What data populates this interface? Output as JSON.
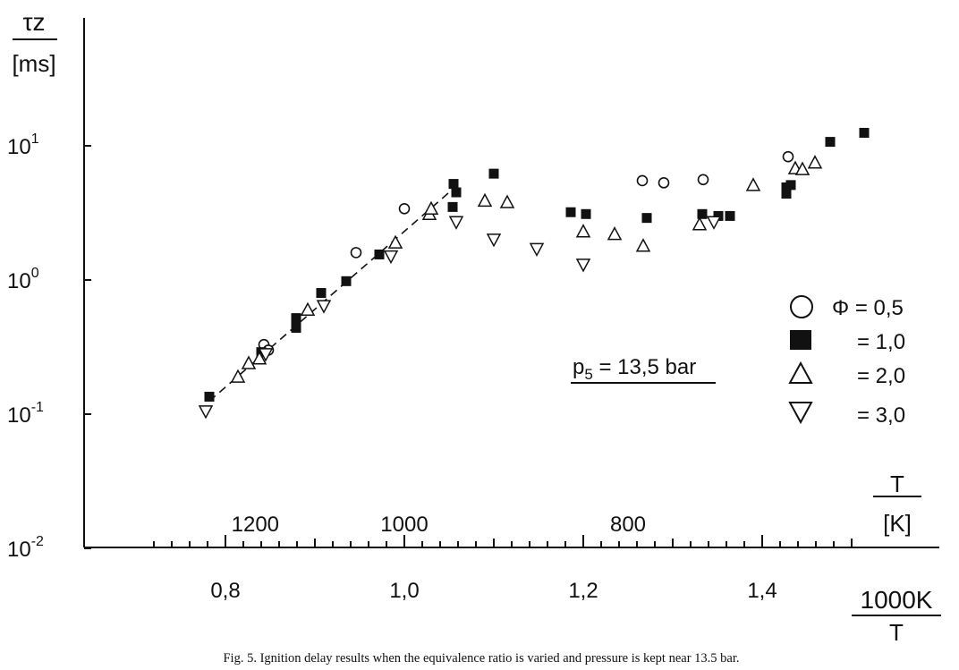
{
  "chart_data": {
    "type": "scatter",
    "title": "",
    "caption": "Fig. 5. Ignition delay results when the equivalence ratio is varied and pressure is kept near 13.5 bar.",
    "y_label_top": "τz",
    "y_label_unit": "[ms]",
    "x_label_numerator": "1000K",
    "x_label_denominator": "T",
    "top_axis_label_top": "T",
    "top_axis_label_unit": "[K]",
    "annotation": "p5 = 13,5 bar",
    "annotation_parts": {
      "p": "p",
      "sub": "5",
      "rest": " = 13,5 bar"
    },
    "y_scale": "log",
    "ylim": [
      0.01,
      20
    ],
    "xlim": [
      0.71,
      1.52
    ],
    "grid": false,
    "legend_position": "right",
    "legend_header": "Φ",
    "y_ticks": [
      {
        "value": 10,
        "base": "10",
        "exp": "1"
      },
      {
        "value": 1,
        "base": "10",
        "exp": "0"
      },
      {
        "value": 0.1,
        "base": "10",
        "exp": "-1"
      },
      {
        "value": 0.01,
        "base": "10",
        "exp": "-2"
      }
    ],
    "x_tick_values": [
      0.8,
      1.0,
      1.2,
      1.4
    ],
    "x_tick_labels": [
      "0,8",
      "1,0",
      "1,2",
      "1,4"
    ],
    "top_ticks": [
      {
        "value": 1200,
        "label": "1200"
      },
      {
        "value": 1000,
        "label": "1000"
      },
      {
        "value": 800,
        "label": "800"
      }
    ],
    "series": [
      {
        "name": "= 0,5",
        "legend_label": "Φ = 0,5",
        "marker": "circle-open",
        "points": [
          [
            0.843,
            0.33
          ],
          [
            0.848,
            0.3
          ],
          [
            0.946,
            1.6
          ],
          [
            1.0,
            3.4
          ],
          [
            1.266,
            5.5
          ],
          [
            1.29,
            5.3
          ],
          [
            1.334,
            5.6
          ],
          [
            1.429,
            8.3
          ]
        ]
      },
      {
        "name": "= 1,0",
        "legend_label": "= 1,0",
        "marker": "square-filled",
        "points": [
          [
            0.782,
            0.135
          ],
          [
            0.84,
            0.29
          ],
          [
            0.879,
            0.52
          ],
          [
            0.879,
            0.44
          ],
          [
            0.907,
            0.8
          ],
          [
            0.935,
            0.98
          ],
          [
            0.972,
            1.55
          ],
          [
            1.055,
            5.2
          ],
          [
            1.058,
            4.5
          ],
          [
            1.054,
            3.5
          ],
          [
            1.1,
            6.2
          ],
          [
            1.186,
            3.2
          ],
          [
            1.203,
            3.1
          ],
          [
            1.271,
            2.9
          ],
          [
            1.333,
            3.1
          ],
          [
            1.351,
            3.0
          ],
          [
            1.364,
            3.0
          ],
          [
            1.427,
            4.9
          ],
          [
            1.432,
            5.1
          ],
          [
            1.427,
            4.4
          ],
          [
            1.476,
            10.7
          ],
          [
            1.514,
            12.5
          ]
        ]
      },
      {
        "name": "= 2,0",
        "legend_label": "= 2,0",
        "marker": "triangle-up-open",
        "points": [
          [
            0.814,
            0.19
          ],
          [
            0.826,
            0.24
          ],
          [
            0.838,
            0.26
          ],
          [
            0.892,
            0.6
          ],
          [
            0.99,
            1.9
          ],
          [
            1.028,
            3.1
          ],
          [
            1.03,
            3.4
          ],
          [
            1.09,
            3.9
          ],
          [
            1.115,
            3.8
          ],
          [
            1.2,
            2.3
          ],
          [
            1.235,
            2.2
          ],
          [
            1.267,
            1.8
          ],
          [
            1.33,
            2.6
          ],
          [
            1.39,
            5.1
          ],
          [
            1.437,
            6.8
          ],
          [
            1.445,
            6.7
          ],
          [
            1.459,
            7.5
          ]
        ]
      },
      {
        "name": "= 3,0",
        "legend_label": "= 3,0",
        "marker": "triangle-down-open",
        "points": [
          [
            0.778,
            0.105
          ],
          [
            0.845,
            0.28
          ],
          [
            0.91,
            0.64
          ],
          [
            0.985,
            1.5
          ],
          [
            1.058,
            2.7
          ],
          [
            1.1,
            2.0
          ],
          [
            1.148,
            1.7
          ],
          [
            1.2,
            1.3
          ],
          [
            1.346,
            2.7
          ]
        ]
      }
    ],
    "fit_line": {
      "style": "dashed",
      "points": [
        [
          0.782,
          0.125
        ],
        [
          1.058,
          5.0
        ]
      ]
    }
  }
}
